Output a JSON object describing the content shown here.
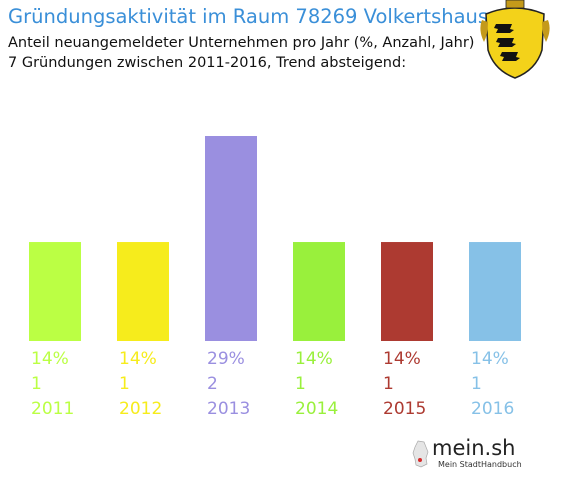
{
  "header": {
    "title": "Gründungsaktivität im Raum 78269 Volkertshausen",
    "subtitle_line1": "Anteil neuangemeldeter Unternehmen pro Jahr (%, Anzahl, Jahr)",
    "subtitle_line2": "7 Gründungen zwischen 2011-2016, Trend absteigend:"
  },
  "logo": {
    "main": "mein.sh",
    "sub": "Mein StadtHandbuch"
  },
  "chart_data": {
    "type": "bar",
    "categories": [
      "2011",
      "2012",
      "2013",
      "2014",
      "2015",
      "2016"
    ],
    "values": [
      14,
      14,
      29,
      14,
      14,
      14
    ],
    "percent_labels": [
      "14%",
      "14%",
      "29%",
      "14%",
      "14%",
      "14%"
    ],
    "count_labels": [
      "1",
      "1",
      "2",
      "1",
      "1",
      "1"
    ],
    "colors": [
      "#bbff44",
      "#f6ec1c",
      "#9a8fe0",
      "#99f03c",
      "#ad3a31",
      "#86c1e7"
    ],
    "title": "Gründungsaktivität im Raum 78269 Volkertshausen",
    "xlabel": "",
    "ylabel": "",
    "ylim": [
      0,
      29
    ],
    "grid": false
  }
}
